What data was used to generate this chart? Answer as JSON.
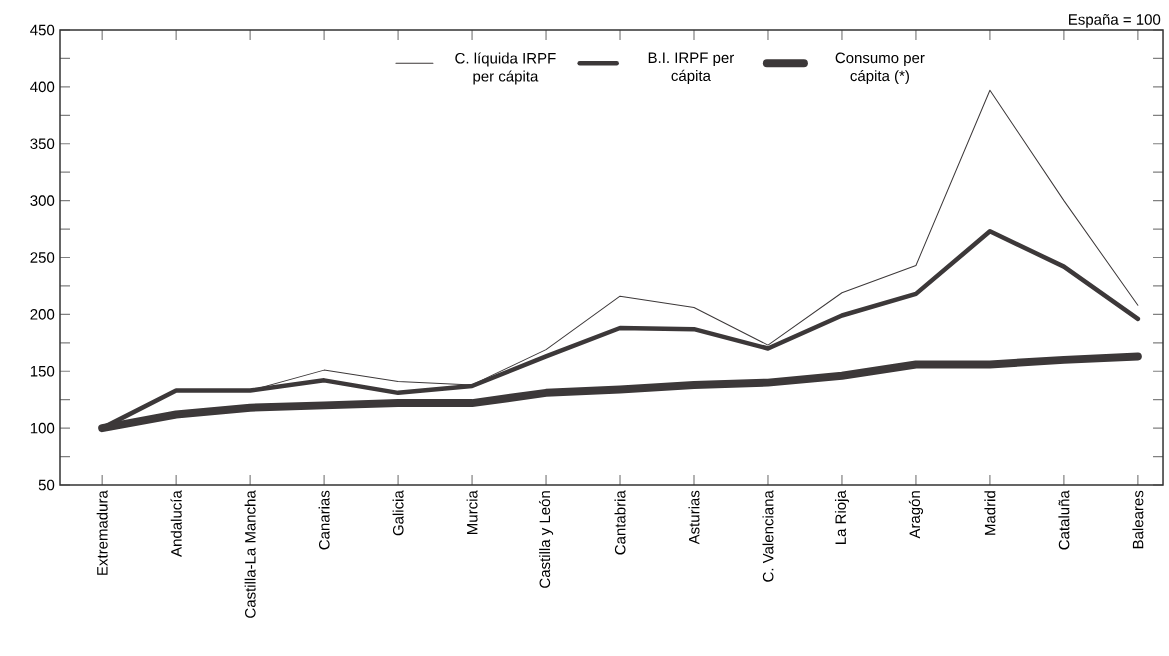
{
  "chart_data": {
    "type": "line",
    "categories": [
      "Extremadura",
      "Andalucía",
      "Castilla-La Mancha",
      "Canarias",
      "Galicia",
      "Murcia",
      "Castilla y León",
      "Cantabria",
      "Asturias",
      "C. Valenciana",
      "La Rioja",
      "Aragón",
      "Madrid",
      "Cataluña",
      "Baleares"
    ],
    "series": [
      {
        "name": "C. líquida IRPF per cápita",
        "color": "#3c3839",
        "values": [
          100,
          133,
          133,
          151,
          141,
          138,
          169,
          216,
          206,
          173,
          219,
          243,
          397,
          300,
          208
        ]
      },
      {
        "name": "B.I. IRPF per cápita",
        "color": "#3c3839",
        "values": [
          100,
          133,
          133,
          142,
          131,
          137,
          163,
          188,
          187,
          170,
          199,
          218,
          273,
          242,
          196
        ]
      },
      {
        "name": "Consumo per cápita (*)",
        "color": "#3c3839",
        "values": [
          100,
          112,
          118,
          120,
          122,
          122,
          131,
          134,
          138,
          140,
          146,
          156,
          156,
          160,
          163
        ]
      }
    ],
    "ylim": [
      50,
      450
    ],
    "yticks": [
      50,
      {
        "value": 75,
        "label": null
      },
      100,
      {
        "value": 125,
        "label": null
      },
      150,
      {
        "value": 175,
        "label": null
      },
      200,
      {
        "value": 225,
        "label": null
      },
      250,
      {
        "value": 275,
        "label": null
      },
      300,
      {
        "value": 325,
        "label": null
      },
      350,
      {
        "value": 375,
        "label": null
      },
      400,
      {
        "value": 425,
        "label": null
      },
      450
    ],
    "annotations": [
      "España = 100"
    ],
    "legend": "top",
    "grid": false,
    "marker": "none",
    "line_style": "solid"
  }
}
